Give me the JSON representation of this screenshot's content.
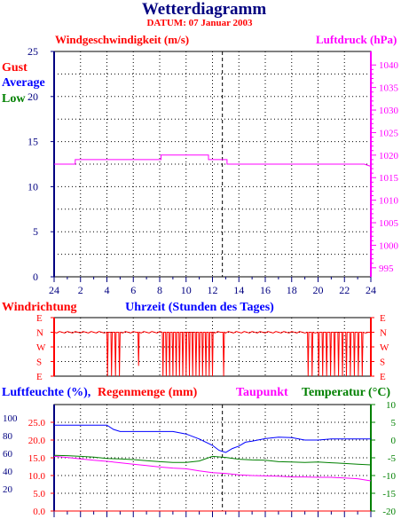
{
  "header": {
    "title": "Wetterdiagramm",
    "datum": "DATUM: 07 Januar 2003"
  },
  "colors": {
    "navy": "#000080",
    "red": "#ff0000",
    "magenta": "#ff00ff",
    "green": "#008000",
    "blue": "#0000ff",
    "frame": "#000000",
    "grid": "#000000"
  },
  "chart_data": [
    {
      "type": "line",
      "title": "Windgeschwindigkeit (m/s)",
      "ylabel": "Windgeschwindigkeit (m/s)",
      "y2label": "Luftdruck (hPa)",
      "x_ticks": [
        "24",
        "2",
        "4",
        "6",
        "8",
        "10",
        "12",
        "14",
        "16",
        "18",
        "20",
        "22",
        "24"
      ],
      "xlim": [
        0,
        24
      ],
      "ylim": [
        0,
        25
      ],
      "y_ticks": [
        0,
        5,
        10,
        15,
        20,
        25
      ],
      "y2lim": [
        993,
        1043
      ],
      "y2_ticks": [
        995,
        1000,
        1005,
        1010,
        1015,
        1020,
        1025,
        1030,
        1035,
        1040
      ],
      "legend": [
        "Gust",
        "Average",
        "Low"
      ],
      "grid": true,
      "marker_hour": 12.75,
      "series": [
        {
          "name": "Luftdruck (hPa)",
          "axis": "right",
          "color": "#ff00ff",
          "x": [
            0,
            1.6,
            1.6,
            8.1,
            8.1,
            11.7,
            11.7,
            13.1,
            13.1,
            23.5,
            24
          ],
          "y": [
            1018,
            1018,
            1019,
            1019,
            1020,
            1020,
            1019,
            1019,
            1018,
            1018,
            1017.5
          ]
        }
      ]
    },
    {
      "type": "line",
      "title": "Windrichtung",
      "xlabel": "Uhrzeit (Stunden des Tages)",
      "y_categories": [
        "E",
        "N",
        "W",
        "S",
        "E"
      ],
      "xlim": [
        0,
        24
      ],
      "grid": true,
      "series": [
        {
          "name": "Windrichtung",
          "color": "#ff0000",
          "x": [
            0,
            0.2,
            0.4,
            0.6,
            0.8,
            1.0,
            1.2,
            1.4,
            1.6,
            1.8,
            2.0,
            2.2,
            2.4,
            2.6,
            2.8,
            3.0,
            3.2,
            3.4,
            3.6,
            3.8,
            4.0,
            4.05,
            4.1,
            4.3,
            4.35,
            4.4,
            4.6,
            4.65,
            4.7,
            4.9,
            4.95,
            5.0,
            5.2,
            5.4,
            5.6,
            5.8,
            6.0,
            6.2,
            6.35,
            6.4,
            6.45,
            6.6,
            6.8,
            7.0,
            7.2,
            7.4,
            7.6,
            7.8,
            8.0,
            8.2,
            8.25,
            8.3,
            8.45,
            8.5,
            8.55,
            8.7,
            8.75,
            8.8,
            8.95,
            9.0,
            9.05,
            9.2,
            9.25,
            9.3,
            9.45,
            9.5,
            9.55,
            9.7,
            9.75,
            9.8,
            9.95,
            10.0,
            10.05,
            10.2,
            10.25,
            10.3,
            10.45,
            10.5,
            10.55,
            10.7,
            10.75,
            10.8,
            10.95,
            11.0,
            11.05,
            11.2,
            11.25,
            11.3,
            11.45,
            11.5,
            11.55,
            11.7,
            11.75,
            11.8,
            11.95,
            12.0,
            12.05,
            12.2,
            12.4,
            12.6,
            12.8,
            12.85,
            12.9,
            13.0,
            13.2,
            13.4,
            13.6,
            13.8,
            14.0,
            14.2,
            14.4,
            14.6,
            14.8,
            15.0,
            15.2,
            15.4,
            15.6,
            15.8,
            16.0,
            16.2,
            16.4,
            16.6,
            16.8,
            17.0,
            17.2,
            17.4,
            17.6,
            17.8,
            18.0,
            18.2,
            18.4,
            18.6,
            18.8,
            19.0,
            19.2,
            19.25,
            19.3,
            19.5,
            19.55,
            19.6,
            19.8,
            20.0,
            20.05,
            20.1,
            20.3,
            20.35,
            20.4,
            20.6,
            20.65,
            20.7,
            20.9,
            20.95,
            21.0,
            21.2,
            21.25,
            21.3,
            21.5,
            21.55,
            21.6,
            21.8,
            21.85,
            21.9,
            22.1,
            22.15,
            22.2,
            22.4,
            22.45,
            22.5,
            22.7,
            22.75,
            22.8,
            23.0,
            23.05,
            23.1,
            23.3,
            23.35,
            23.4,
            23.6,
            23.8,
            24.0
          ],
          "y": [
            1.0,
            1.05,
            0.95,
            1.0,
            1.05,
            0.95,
            1.0,
            1.05,
            0.95,
            1.0,
            1.05,
            0.95,
            1.0,
            1.05,
            0.95,
            1.0,
            1.05,
            0.95,
            1.0,
            1.05,
            1.0,
            4.0,
            1.0,
            1.0,
            4.0,
            1.0,
            1.0,
            4.0,
            1.0,
            1.0,
            4.0,
            1.0,
            1.05,
            0.95,
            1.0,
            1.05,
            0.95,
            1.0,
            1.0,
            3.3,
            1.0,
            1.05,
            0.95,
            1.0,
            1.05,
            0.95,
            1.0,
            1.05,
            0.95,
            1.0,
            4.0,
            1.0,
            1.0,
            4.0,
            1.0,
            1.0,
            4.0,
            1.0,
            1.0,
            4.0,
            1.0,
            1.0,
            4.0,
            1.0,
            1.0,
            4.0,
            1.0,
            1.0,
            4.0,
            1.0,
            1.0,
            4.0,
            1.0,
            1.0,
            4.0,
            1.0,
            1.0,
            4.0,
            1.0,
            1.0,
            4.0,
            1.0,
            1.0,
            4.0,
            1.0,
            1.0,
            4.0,
            1.0,
            1.0,
            4.0,
            1.0,
            1.0,
            4.0,
            1.0,
            1.0,
            4.0,
            1.0,
            1.05,
            0.95,
            1.0,
            1.0,
            4.0,
            1.0,
            1.05,
            0.95,
            1.0,
            1.05,
            0.95,
            1.0,
            1.05,
            0.95,
            1.0,
            1.05,
            0.95,
            1.0,
            1.05,
            0.95,
            1.0,
            1.05,
            0.95,
            1.0,
            1.05,
            0.95,
            1.0,
            1.05,
            0.95,
            1.0,
            1.05,
            0.95,
            1.0,
            1.05,
            0.95,
            1.0,
            1.05,
            1.0,
            4.0,
            1.0,
            1.0,
            4.0,
            1.0,
            1.05,
            1.0,
            4.0,
            1.0,
            1.0,
            4.0,
            1.0,
            1.0,
            4.0,
            1.0,
            1.0,
            4.0,
            1.0,
            1.0,
            4.0,
            1.0,
            1.0,
            4.0,
            1.0,
            1.0,
            4.0,
            1.0,
            1.0,
            4.0,
            1.0,
            1.0,
            4.0,
            1.0,
            1.0,
            4.0,
            1.0,
            1.0,
            4.0,
            1.0,
            1.0,
            4.0,
            1.0,
            1.05,
            1.0,
            1.0
          ]
        }
      ]
    },
    {
      "type": "line",
      "labels": [
        "Luftfeuchte (%),",
        "Regenmenge (mm)",
        "Taupunkt",
        "Temperatur (°C)"
      ],
      "xlim": [
        0,
        24
      ],
      "y_ticks_humidity": [
        20,
        40,
        60,
        80,
        100
      ],
      "y_ticks_rain": [
        0.0,
        5.0,
        10.0,
        15.0,
        20.0,
        25.0
      ],
      "ylim": [
        0,
        30
      ],
      "y2lim": [
        -20,
        10
      ],
      "y2_ticks": [
        -20,
        -15,
        -10,
        -5,
        0,
        5,
        10
      ],
      "grid": true,
      "series": [
        {
          "name": "Luftfeuchte (%)",
          "axis": "left",
          "color": "#0000ff",
          "x": [
            0,
            1,
            2,
            3,
            4,
            4.5,
            5,
            6,
            7,
            8,
            9,
            10,
            11,
            12,
            12.5,
            13,
            13.5,
            14,
            14.5,
            15,
            16,
            17,
            18,
            19,
            20,
            21,
            22,
            23,
            24
          ],
          "y": [
            24.2,
            24.2,
            24.2,
            24.2,
            24.2,
            23.0,
            22.4,
            22.4,
            22.4,
            22.4,
            22.4,
            21.7,
            20.3,
            18.5,
            17.1,
            16.5,
            17.6,
            18.3,
            19.4,
            19.7,
            20.4,
            20.8,
            20.7,
            20.0,
            20.0,
            20.3,
            20.3,
            20.3,
            20.3
          ]
        },
        {
          "name": "Temperatur (°C)",
          "axis": "right",
          "color": "#008000",
          "x": [
            0,
            1,
            2,
            3,
            4,
            5,
            6,
            7,
            8,
            9,
            10,
            11,
            12,
            13,
            14,
            15,
            16,
            17,
            18,
            19,
            20,
            21,
            22,
            23,
            24
          ],
          "y": [
            -4.3,
            -4.4,
            -4.6,
            -4.8,
            -5.2,
            -5.3,
            -5.5,
            -5.8,
            -6.1,
            -6.3,
            -6.3,
            -5.9,
            -4.6,
            -4.9,
            -5.4,
            -5.6,
            -5.7,
            -6.1,
            -6.2,
            -6.3,
            -6.2,
            -6.4,
            -6.6,
            -6.8,
            -7.0
          ]
        },
        {
          "name": "Taupunkt",
          "axis": "right",
          "color": "#ff00ff",
          "x": [
            0,
            1,
            2,
            3,
            4,
            5,
            6,
            7,
            8,
            9,
            10,
            11,
            12,
            13,
            14,
            15,
            16,
            17,
            18,
            19,
            20,
            21,
            22,
            23,
            24
          ],
          "y": [
            -4.6,
            -4.9,
            -5.3,
            -5.7,
            -6.0,
            -6.4,
            -6.8,
            -7.2,
            -7.6,
            -7.9,
            -8.1,
            -8.7,
            -9.2,
            -9.4,
            -9.8,
            -10.0,
            -10.1,
            -10.2,
            -10.4,
            -10.4,
            -10.5,
            -10.5,
            -10.7,
            -10.9,
            -11.5
          ]
        },
        {
          "name": "Regenmenge (mm)",
          "axis": "left",
          "color": "#ff0000",
          "x": [
            0,
            24
          ],
          "y": [
            0.0,
            0.0
          ]
        }
      ]
    }
  ]
}
